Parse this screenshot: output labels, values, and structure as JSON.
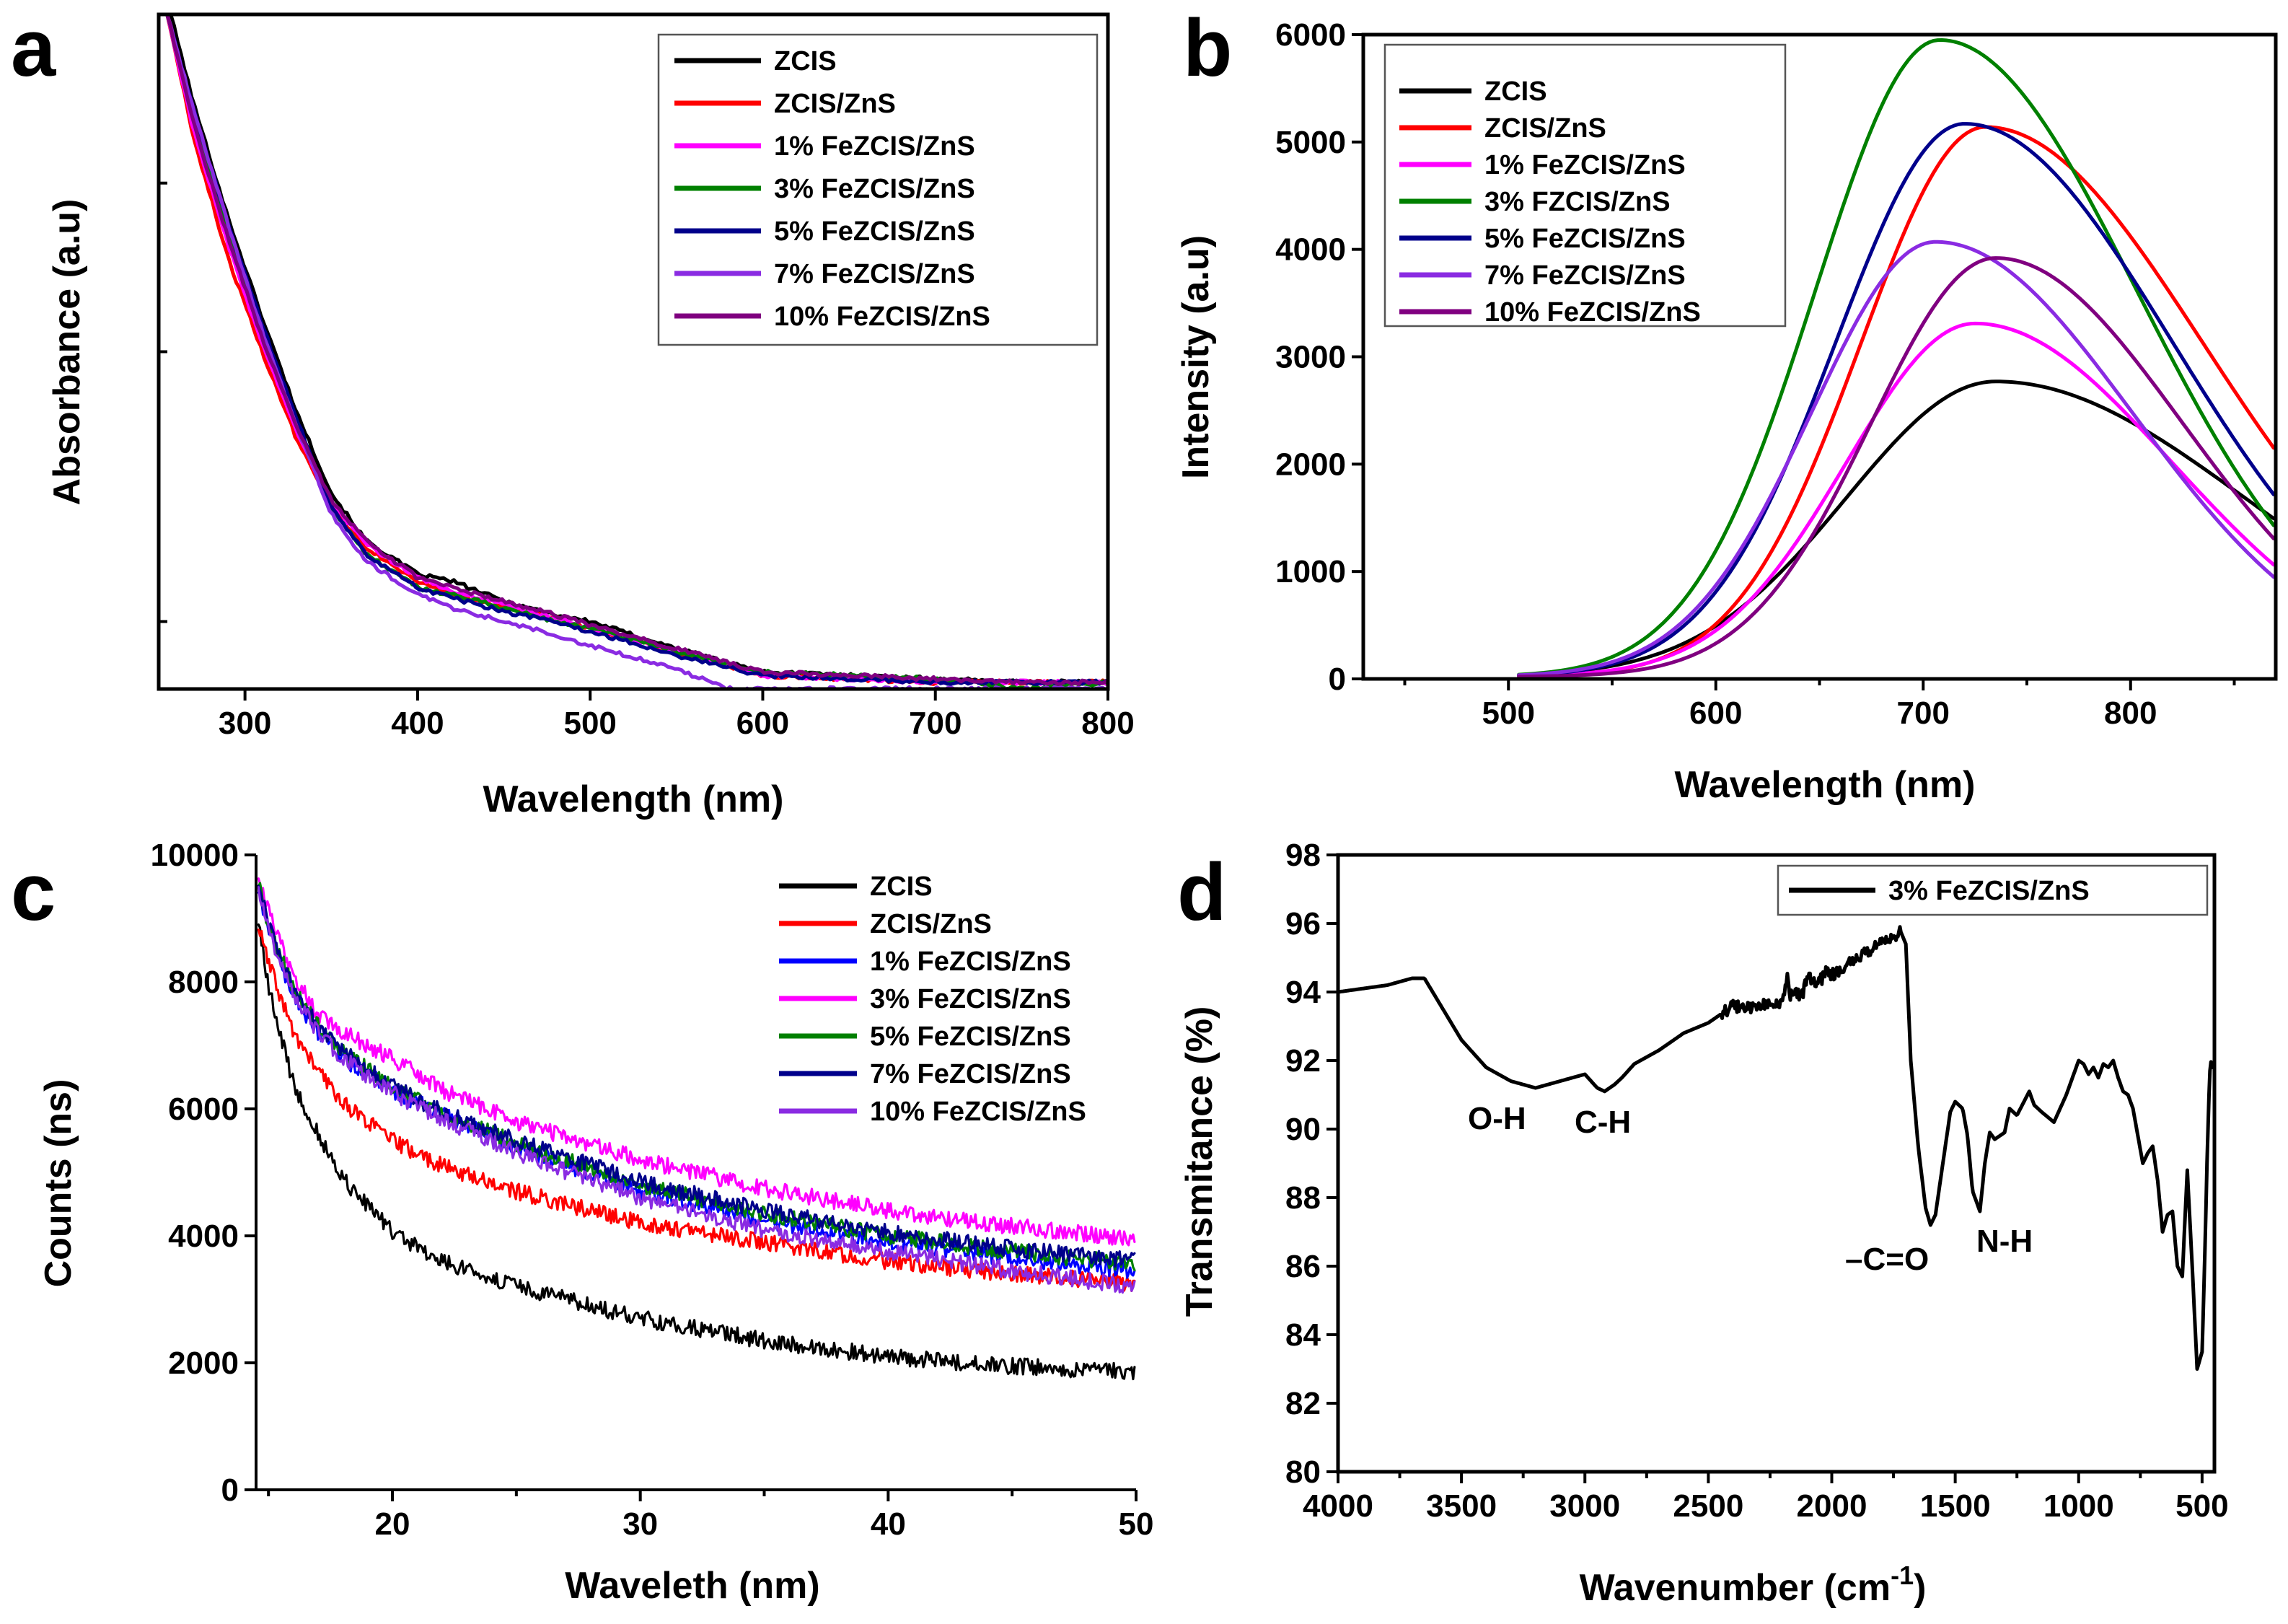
{
  "chart_data": [
    {
      "panel": "a",
      "type": "line",
      "title": "",
      "xlabel": "Wavelength (nm)",
      "ylabel": "Absorbance (a.u)",
      "xlim": [
        250,
        800
      ],
      "ylim": [
        0,
        1
      ],
      "xticks": [
        300,
        400,
        500,
        600,
        700,
        800
      ],
      "yticks": [],
      "legend_position": "top-right",
      "series": [
        {
          "name": "ZCIS",
          "color": "#000000",
          "x": [
            255,
            270,
            290,
            310,
            330,
            350,
            370,
            400,
            420,
            450,
            480,
            500,
            550,
            600,
            650,
            700,
            750,
            800
          ],
          "y": [
            1.02,
            0.87,
            0.7,
            0.55,
            0.41,
            0.29,
            0.22,
            0.17,
            0.16,
            0.13,
            0.11,
            0.1,
            0.06,
            0.025,
            0.02,
            0.015,
            0.01,
            0.01
          ]
        },
        {
          "name": "ZCIS/ZnS",
          "color": "#ff0000",
          "x": [
            255,
            270,
            290,
            310,
            330,
            350,
            370,
            400,
            420,
            450,
            480,
            500,
            550,
            600,
            650,
            700,
            750,
            800
          ],
          "y": [
            1.0,
            0.82,
            0.64,
            0.5,
            0.37,
            0.27,
            0.21,
            0.16,
            0.14,
            0.12,
            0.105,
            0.09,
            0.055,
            0.02,
            0.015,
            0.01,
            0.01,
            0.01
          ]
        },
        {
          "name": "1% FeZCIS/ZnS",
          "color": "#ff00ff",
          "x": [
            255,
            270,
            290,
            310,
            330,
            350,
            370,
            400,
            420,
            450,
            480,
            500,
            550,
            600,
            650,
            700,
            750,
            800
          ],
          "y": [
            1.0,
            0.83,
            0.66,
            0.51,
            0.38,
            0.275,
            0.215,
            0.165,
            0.145,
            0.125,
            0.105,
            0.09,
            0.055,
            0.02,
            0.015,
            0.01,
            0.01,
            0.01
          ]
        },
        {
          "name": "3% FeZCIS/ZnS",
          "color": "#008000",
          "x": [
            255,
            270,
            290,
            310,
            330,
            350,
            370,
            400,
            420,
            450,
            480,
            500,
            550,
            600,
            650,
            700,
            750,
            800
          ],
          "y": [
            1.0,
            0.85,
            0.68,
            0.53,
            0.39,
            0.27,
            0.2,
            0.15,
            0.14,
            0.12,
            0.1,
            0.09,
            0.055,
            0.025,
            0.02,
            0.015,
            0.0,
            0.01
          ]
        },
        {
          "name": "5% FeZCIS/ZnS",
          "color": "#00008b",
          "x": [
            255,
            270,
            290,
            310,
            330,
            350,
            370,
            400,
            420,
            450,
            480,
            500,
            550,
            600,
            650,
            700,
            750,
            800
          ],
          "y": [
            1.0,
            0.86,
            0.69,
            0.54,
            0.4,
            0.27,
            0.2,
            0.15,
            0.135,
            0.115,
            0.1,
            0.085,
            0.05,
            0.02,
            0.015,
            0.01,
            0.01,
            0.01
          ]
        },
        {
          "name": "7% FeZCIS/ZnS",
          "color": "#8a2be2",
          "x": [
            255,
            270,
            290,
            310,
            330,
            350,
            370,
            400,
            420,
            450,
            480,
            500,
            550,
            580,
            600,
            650,
            700,
            800
          ],
          "y": [
            1.0,
            0.86,
            0.69,
            0.53,
            0.39,
            0.26,
            0.19,
            0.14,
            0.12,
            0.1,
            0.08,
            0.065,
            0.03,
            0.0,
            0.0,
            0.0,
            0.0,
            0.0
          ]
        },
        {
          "name": "10% FeZCIS/ZnS",
          "color": "#800080",
          "x": [
            255,
            270,
            290,
            310,
            330,
            350,
            370,
            400,
            420,
            450,
            480,
            500,
            550,
            600,
            650,
            700,
            750,
            800
          ],
          "y": [
            1.0,
            0.84,
            0.67,
            0.52,
            0.39,
            0.28,
            0.22,
            0.165,
            0.15,
            0.13,
            0.11,
            0.095,
            0.06,
            0.025,
            0.02,
            0.015,
            0.01,
            0.01
          ]
        }
      ]
    },
    {
      "panel": "b",
      "type": "line",
      "title": "",
      "xlabel": "Wavelength (nm)",
      "ylabel": "Intensity (a.u)",
      "xlim": [
        430,
        870
      ],
      "ylim": [
        0,
        6000
      ],
      "xticks": [
        500,
        600,
        700,
        800
      ],
      "yticks": [
        0,
        1000,
        2000,
        3000,
        4000,
        5000,
        6000
      ],
      "legend_position": "top-left",
      "series": [
        {
          "name": "ZCIS",
          "color": "#000000",
          "peak_x": 735,
          "peak_y": 2750,
          "sigma_left": 72,
          "sigma_right": 120
        },
        {
          "name": "ZCIS/ZnS",
          "color": "#ff0000",
          "peak_x": 730,
          "peak_y": 5120,
          "sigma_left": 60,
          "sigma_right": 105
        },
        {
          "name": "1% FeZCIS/ZnS",
          "color": "#ff00ff",
          "peak_x": 725,
          "peak_y": 3290,
          "sigma_left": 62,
          "sigma_right": 95
        },
        {
          "name": "3% FZCIS/ZnS",
          "color": "#008000",
          "peak_x": 708,
          "peak_y": 5930,
          "sigma_left": 60,
          "sigma_right": 95
        },
        {
          "name": "5% FeZCIS/ZnS",
          "color": "#00008b",
          "peak_x": 720,
          "peak_y": 5150,
          "sigma_left": 62,
          "sigma_right": 100
        },
        {
          "name": "7% FeZCIS/ZnS",
          "color": "#8a2be2",
          "peak_x": 706,
          "peak_y": 4050,
          "sigma_left": 60,
          "sigma_right": 95
        },
        {
          "name": "10% FeZCIS/ZnS",
          "color": "#800080",
          "peak_x": 735,
          "peak_y": 3900,
          "sigma_left": 60,
          "sigma_right": 90
        }
      ]
    },
    {
      "panel": "c",
      "type": "line",
      "title": "",
      "xlabel": "Waveleth (nm)",
      "ylabel": "Counts (ns)",
      "xlim": [
        14.5,
        50
      ],
      "ylim": [
        0,
        10000
      ],
      "xticks": [
        20,
        30,
        40,
        50
      ],
      "yticks": [
        0,
        2000,
        4000,
        6000,
        8000,
        10000
      ],
      "legend_position": "top-right",
      "series": [
        {
          "name": "ZCIS",
          "color": "#000000",
          "x": [
            14.5,
            15,
            16,
            17,
            18,
            20,
            22,
            25,
            30,
            35,
            40,
            45,
            50
          ],
          "y": [
            9200,
            7900,
            6400,
            5600,
            4900,
            4050,
            3600,
            3200,
            2700,
            2350,
            2100,
            1950,
            1850
          ]
        },
        {
          "name": "ZCIS/ZnS",
          "color": "#ff0000",
          "x": [
            14.5,
            15,
            16,
            17,
            18,
            20,
            22,
            25,
            30,
            35,
            40,
            45,
            50
          ],
          "y": [
            9000,
            8300,
            7200,
            6600,
            6100,
            5500,
            5100,
            4700,
            4200,
            3900,
            3600,
            3400,
            3250
          ]
        },
        {
          "name": "1% FeZCIS/ZnS",
          "color": "#0000ff",
          "x": [
            14.5,
            15,
            16,
            17,
            18,
            20,
            22,
            25,
            30,
            35,
            40,
            45,
            50
          ],
          "y": [
            9600,
            8800,
            7800,
            7200,
            6800,
            6300,
            5900,
            5400,
            4700,
            4250,
            3900,
            3650,
            3450
          ]
        },
        {
          "name": "3% FeZCIS/ZnS",
          "color": "#ff00ff",
          "x": [
            14.5,
            15,
            16,
            17,
            18,
            20,
            22,
            25,
            30,
            35,
            40,
            45,
            50
          ],
          "y": [
            9800,
            9100,
            8100,
            7500,
            7200,
            6800,
            6300,
            5800,
            5200,
            4750,
            4400,
            4150,
            3950
          ]
        },
        {
          "name": "5% FeZCIS/ZnS",
          "color": "#008000",
          "x": [
            14.5,
            15,
            16,
            17,
            18,
            20,
            22,
            25,
            30,
            35,
            40,
            45,
            50
          ],
          "y": [
            9700,
            8900,
            7900,
            7300,
            6900,
            6350,
            5950,
            5450,
            4800,
            4350,
            4000,
            3750,
            3550
          ]
        },
        {
          "name": "7% FeZCIS/ZnS",
          "color": "#00008b",
          "x": [
            14.5,
            15,
            16,
            17,
            18,
            20,
            22,
            25,
            30,
            35,
            40,
            45,
            50
          ],
          "y": [
            9700,
            8900,
            7900,
            7300,
            6900,
            6350,
            5950,
            5500,
            4850,
            4400,
            4050,
            3800,
            3600
          ]
        },
        {
          "name": "10% FeZCIS/ZnS",
          "color": "#8a2be2",
          "x": [
            14.5,
            15,
            16,
            17,
            18,
            20,
            22,
            25,
            30,
            35,
            40,
            45,
            50
          ],
          "y": [
            9700,
            8800,
            7800,
            7200,
            6800,
            6250,
            5850,
            5300,
            4600,
            4100,
            3750,
            3450,
            3200
          ]
        }
      ]
    },
    {
      "panel": "d",
      "type": "line",
      "title": "",
      "xlabel": "Wavenumber (cm",
      "xlabel_superscript": "-1",
      "xlabel_close": ")",
      "ylabel": "Transmitance (%)",
      "xlim": [
        4000,
        450
      ],
      "ylim": [
        80,
        98
      ],
      "xticks": [
        4000,
        3500,
        3000,
        2500,
        2000,
        1500,
        1000,
        500
      ],
      "yticks": [
        80,
        82,
        84,
        86,
        88,
        90,
        92,
        94,
        96,
        98
      ],
      "legend_position": "top-right",
      "annotations": [
        "O-H",
        "C-H",
        "–C=O",
        "N-H"
      ],
      "series": [
        {
          "name": "3% FeZCIS/ZnS",
          "color": "#000000",
          "x": [
            4000,
            3800,
            3700,
            3650,
            3600,
            3500,
            3400,
            3300,
            3200,
            3100,
            3000,
            2950,
            2920,
            2880,
            2850,
            2800,
            2700,
            2600,
            2500,
            2400,
            2350,
            2300,
            2250,
            2200,
            2180,
            2170,
            2160,
            2120,
            2100,
            2050,
            2020,
            2000,
            1950,
            1900,
            1850,
            1800,
            1750,
            1720,
            1700,
            1680,
            1650,
            1620,
            1600,
            1580,
            1550,
            1520,
            1500,
            1470,
            1450,
            1430,
            1400,
            1380,
            1360,
            1340,
            1300,
            1280,
            1250,
            1200,
            1180,
            1150,
            1100,
            1050,
            1000,
            980,
            960,
            940,
            920,
            900,
            880,
            860,
            840,
            820,
            800,
            780,
            760,
            740,
            720,
            700,
            680,
            660,
            640,
            620,
            600,
            580,
            560,
            540,
            520,
            500,
            490,
            480,
            470,
            465,
            460
          ],
          "y": [
            94.0,
            94.2,
            94.4,
            94.4,
            93.8,
            92.6,
            91.8,
            91.4,
            91.2,
            91.4,
            91.6,
            91.2,
            91.1,
            91.3,
            91.5,
            91.9,
            92.3,
            92.8,
            93.1,
            93.6,
            93.5,
            93.6,
            93.7,
            93.6,
            94.5,
            93.7,
            94.0,
            93.9,
            94.4,
            94.3,
            94.6,
            94.5,
            94.7,
            95.0,
            95.2,
            95.4,
            95.6,
            95.75,
            95.4,
            92.0,
            89.5,
            87.7,
            87.2,
            87.5,
            89.0,
            90.5,
            90.8,
            90.6,
            89.8,
            88.2,
            87.6,
            89.0,
            89.9,
            89.7,
            89.9,
            90.6,
            90.4,
            91.1,
            90.7,
            90.5,
            90.2,
            91.0,
            92.0,
            91.9,
            91.6,
            91.8,
            91.5,
            91.9,
            91.8,
            92.0,
            91.5,
            91.1,
            91.0,
            90.6,
            89.8,
            89.0,
            89.3,
            89.5,
            88.5,
            87.0,
            87.5,
            87.6,
            86.0,
            85.7,
            88.8,
            86.0,
            83.0,
            83.5,
            86.0,
            89.0,
            91.5,
            92.0,
            91.8
          ]
        }
      ]
    }
  ]
}
